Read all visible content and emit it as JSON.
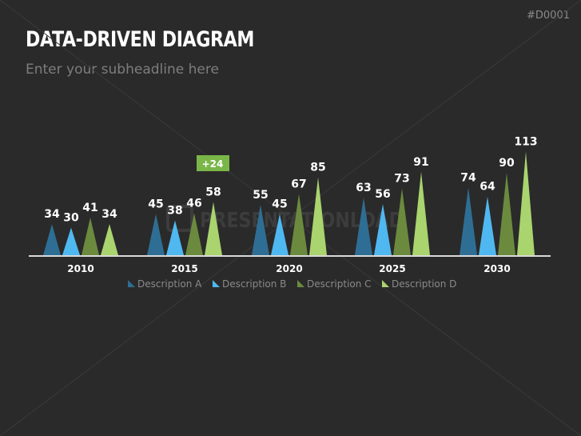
{
  "page_id": "#D0001",
  "header": {
    "title": "DATA-DRIVEN DIAGRAM",
    "subtitle": "Enter your subheadline here"
  },
  "watermark": "PRESENTATIONLOAD",
  "chart_data": {
    "type": "bar",
    "categories": [
      "2010",
      "2015",
      "2020",
      "2025",
      "2030"
    ],
    "series": [
      {
        "name": "Description A",
        "color": "#2e6e94",
        "values": [
          34,
          45,
          55,
          63,
          74
        ]
      },
      {
        "name": "Description B",
        "color": "#4fb8f0",
        "values": [
          30,
          38,
          45,
          56,
          64
        ]
      },
      {
        "name": "Description C",
        "color": "#6b8a3e",
        "values": [
          41,
          46,
          67,
          73,
          90
        ]
      },
      {
        "name": "Description D",
        "color": "#a9d46e",
        "values": [
          34,
          58,
          85,
          91,
          113
        ]
      }
    ],
    "mark_shape": "triangle",
    "legend": "bottom",
    "grid": false,
    "annotations": [
      {
        "text": "+24",
        "category": "2015",
        "color": "#7ab648"
      }
    ]
  }
}
